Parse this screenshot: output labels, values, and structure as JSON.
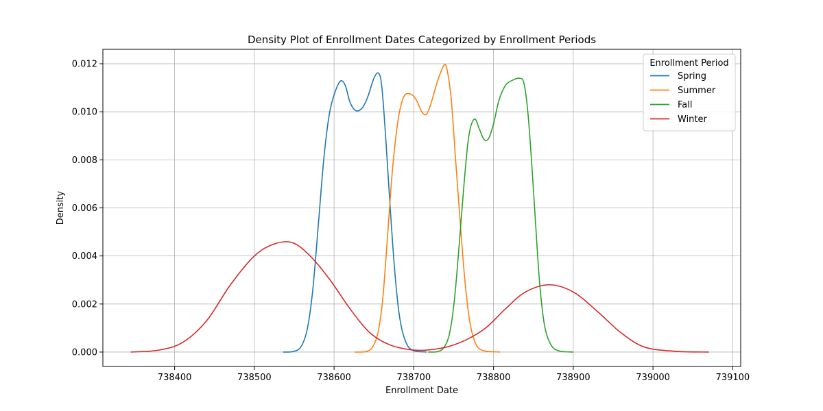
{
  "chart_data": {
    "type": "line",
    "title": "Density Plot of Enrollment Dates Categorized by Enrollment Periods",
    "xlabel": "Enrollment Date",
    "ylabel": "Density",
    "xlim": [
      738310,
      739110
    ],
    "ylim": [
      -0.0006,
      0.0126
    ],
    "x_ticks": [
      738400,
      738500,
      738600,
      738700,
      738800,
      738900,
      739000,
      739100
    ],
    "x_tick_labels": [
      "738400",
      "738500",
      "738600",
      "738700",
      "738800",
      "738900",
      "739000",
      "739100"
    ],
    "y_ticks": [
      0.0,
      0.002,
      0.004,
      0.006,
      0.008,
      0.01,
      0.012
    ],
    "y_tick_labels": [
      "0.000",
      "0.002",
      "0.004",
      "0.006",
      "0.008",
      "0.010",
      "0.012"
    ],
    "grid": true,
    "legend": {
      "title": "Enrollment Period",
      "placement": "top-right"
    },
    "series": [
      {
        "name": "Spring",
        "color": "#1f77b4",
        "points": [
          [
            738536,
            0.0
          ],
          [
            738548,
            2e-05
          ],
          [
            738558,
            0.0002
          ],
          [
            738566,
            0.0009
          ],
          [
            738573,
            0.0025
          ],
          [
            738580,
            0.0052
          ],
          [
            738587,
            0.008
          ],
          [
            738594,
            0.0099
          ],
          [
            738601,
            0.0108
          ],
          [
            738608,
            0.01128
          ],
          [
            738614,
            0.0111
          ],
          [
            738620,
            0.0104
          ],
          [
            738627,
            0.01005
          ],
          [
            738635,
            0.01015
          ],
          [
            738642,
            0.0106
          ],
          [
            738650,
            0.0114
          ],
          [
            738656,
            0.0116
          ],
          [
            738660,
            0.011
          ],
          [
            738665,
            0.0088
          ],
          [
            738670,
            0.0062
          ],
          [
            738676,
            0.0034
          ],
          [
            738682,
            0.0015
          ],
          [
            738689,
            0.0005
          ],
          [
            738698,
            8e-05
          ],
          [
            738716,
            0.0
          ]
        ]
      },
      {
        "name": "Summer",
        "color": "#ff7f0e",
        "points": [
          [
            738626,
            0.0
          ],
          [
            738640,
            2e-05
          ],
          [
            738648,
            0.0002
          ],
          [
            738655,
            0.0008
          ],
          [
            738661,
            0.0022
          ],
          [
            738667,
            0.0048
          ],
          [
            738673,
            0.0075
          ],
          [
            738680,
            0.0096
          ],
          [
            738687,
            0.0106
          ],
          [
            738695,
            0.01075
          ],
          [
            738703,
            0.0105
          ],
          [
            738710,
            0.01
          ],
          [
            738716,
            0.0099
          ],
          [
            738722,
            0.0104
          ],
          [
            738730,
            0.0113
          ],
          [
            738738,
            0.01195
          ],
          [
            738742,
            0.0117
          ],
          [
            738747,
            0.0105
          ],
          [
            738752,
            0.0082
          ],
          [
            738758,
            0.0055
          ],
          [
            738764,
            0.003
          ],
          [
            738770,
            0.0013
          ],
          [
            738777,
            0.0004
          ],
          [
            738786,
            7e-05
          ],
          [
            738808,
            0.0
          ]
        ]
      },
      {
        "name": "Fall",
        "color": "#2ca02c",
        "points": [
          [
            738718,
            0.0
          ],
          [
            738730,
            2e-05
          ],
          [
            738738,
            0.0002
          ],
          [
            738745,
            0.0008
          ],
          [
            738751,
            0.0022
          ],
          [
            738757,
            0.0045
          ],
          [
            738763,
            0.007
          ],
          [
            738769,
            0.009
          ],
          [
            738776,
            0.0097
          ],
          [
            738782,
            0.0093
          ],
          [
            738788,
            0.00885
          ],
          [
            738794,
            0.0089
          ],
          [
            738800,
            0.0095
          ],
          [
            738807,
            0.0105
          ],
          [
            738815,
            0.0111
          ],
          [
            738823,
            0.0113
          ],
          [
            738832,
            0.0114
          ],
          [
            738838,
            0.0112
          ],
          [
            738843,
            0.01
          ],
          [
            738848,
            0.0078
          ],
          [
            738853,
            0.0052
          ],
          [
            738858,
            0.0028
          ],
          [
            738864,
            0.0011
          ],
          [
            738872,
            0.0003
          ],
          [
            738882,
            5e-05
          ],
          [
            738900,
            0.0
          ]
        ]
      },
      {
        "name": "Winter",
        "color": "#d62728",
        "points": [
          [
            738345,
            0.0
          ],
          [
            738380,
            8e-05
          ],
          [
            738410,
            0.0004
          ],
          [
            738440,
            0.0013
          ],
          [
            738470,
            0.0028
          ],
          [
            738500,
            0.004
          ],
          [
            738525,
            0.0045
          ],
          [
            738548,
            0.00455
          ],
          [
            738570,
            0.004
          ],
          [
            738595,
            0.003
          ],
          [
            738620,
            0.0018
          ],
          [
            738645,
            0.0008
          ],
          [
            738670,
            0.0003
          ],
          [
            738695,
            0.0001
          ],
          [
            738715,
            8e-05
          ],
          [
            738740,
            0.0002
          ],
          [
            738765,
            0.0005
          ],
          [
            738790,
            0.001
          ],
          [
            738815,
            0.0018
          ],
          [
            738840,
            0.0025
          ],
          [
            738870,
            0.0028
          ],
          [
            738900,
            0.0025
          ],
          [
            738930,
            0.0017
          ],
          [
            738960,
            0.0008
          ],
          [
            738990,
            0.0002
          ],
          [
            739030,
            3e-05
          ],
          [
            739070,
            0.0
          ]
        ]
      }
    ]
  }
}
